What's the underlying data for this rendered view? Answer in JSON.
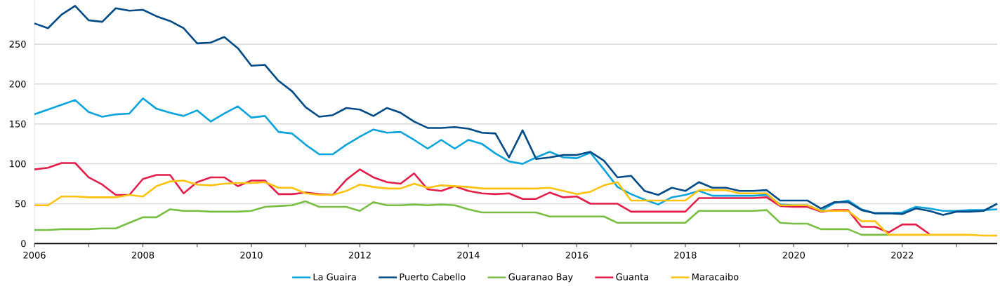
{
  "chart_data": {
    "type": "line",
    "x": [
      2006,
      2006.25,
      2006.5,
      2006.75,
      2007,
      2007.25,
      2007.5,
      2007.75,
      2008,
      2008.25,
      2008.5,
      2008.75,
      2009,
      2009.25,
      2009.5,
      2009.75,
      2010,
      2010.25,
      2010.5,
      2010.75,
      2011,
      2011.25,
      2011.5,
      2011.75,
      2012,
      2012.25,
      2012.5,
      2012.75,
      2013,
      2013.25,
      2013.5,
      2013.75,
      2014,
      2014.25,
      2014.5,
      2014.75,
      2015,
      2015.25,
      2015.5,
      2015.75,
      2016,
      2016.25,
      2016.5,
      2016.75,
      2017,
      2017.25,
      2017.5,
      2017.75,
      2018,
      2018.25,
      2018.5,
      2018.75,
      2019,
      2019.25,
      2019.5,
      2019.75,
      2020,
      2020.25,
      2020.5,
      2020.75,
      2021,
      2021.25,
      2021.5,
      2021.75,
      2022,
      2022.25,
      2022.5,
      2022.75,
      2023,
      2023.25,
      2023.5,
      2023.75
    ],
    "series": [
      {
        "name": "La Guaira",
        "color": "#0ba3dc",
        "values": [
          162,
          168,
          174,
          180,
          165,
          159,
          162,
          163,
          182,
          169,
          164,
          160,
          167,
          153,
          163,
          172,
          158,
          160,
          140,
          138,
          124,
          112,
          112,
          124,
          134,
          143,
          139,
          140,
          130,
          119,
          130,
          119,
          130,
          125,
          113,
          103,
          100,
          108,
          115,
          108,
          107,
          114,
          93,
          71,
          62,
          55,
          49,
          58,
          61,
          66,
          60,
          60,
          60,
          60,
          61,
          49,
          48,
          48,
          41,
          51,
          54,
          43,
          38,
          38,
          39,
          46,
          44,
          41,
          41,
          42,
          42,
          43
        ]
      },
      {
        "name": "Puerto Cabello",
        "color": "#004b87",
        "values": [
          276,
          270,
          287,
          298,
          280,
          278,
          295,
          292,
          293,
          285,
          279,
          270,
          251,
          252,
          259,
          245,
          223,
          224,
          204,
          191,
          171,
          159,
          161,
          170,
          168,
          160,
          170,
          164,
          153,
          145,
          145,
          146,
          144,
          139,
          138,
          108,
          142,
          106,
          108,
          111,
          111,
          115,
          104,
          83,
          85,
          66,
          61,
          70,
          66,
          77,
          70,
          70,
          66,
          66,
          67,
          54,
          54,
          54,
          44,
          52,
          52,
          42,
          38,
          38,
          37,
          44,
          41,
          36,
          40,
          40,
          41,
          50
        ]
      },
      {
        "name": "Guaranao Bay",
        "color": "#78be43",
        "values": [
          17,
          17,
          18,
          18,
          18,
          19,
          19,
          26,
          33,
          33,
          43,
          41,
          41,
          40,
          40,
          40,
          41,
          46,
          47,
          48,
          53,
          46,
          46,
          46,
          41,
          52,
          48,
          48,
          49,
          48,
          49,
          48,
          43,
          39,
          39,
          39,
          39,
          39,
          34,
          34,
          34,
          34,
          34,
          26,
          26,
          26,
          26,
          26,
          26,
          41,
          41,
          41,
          41,
          41,
          42,
          26,
          25,
          25,
          18,
          18,
          18,
          11,
          11,
          11,
          null,
          null,
          null,
          null,
          null,
          null,
          null,
          null
        ]
      },
      {
        "name": "Guanta",
        "color": "#e31e4b",
        "values": [
          93,
          95,
          101,
          101,
          83,
          74,
          61,
          61,
          81,
          86,
          86,
          63,
          77,
          83,
          83,
          72,
          79,
          79,
          62,
          62,
          64,
          62,
          61,
          80,
          93,
          83,
          77,
          75,
          88,
          68,
          66,
          72,
          66,
          63,
          62,
          63,
          56,
          56,
          64,
          58,
          59,
          50,
          50,
          50,
          40,
          40,
          40,
          40,
          40,
          57,
          57,
          57,
          57,
          57,
          58,
          47,
          46,
          46,
          40,
          42,
          42,
          21,
          21,
          14,
          24,
          24,
          12,
          null,
          null,
          null,
          null,
          null
        ]
      },
      {
        "name": "Maracaibo",
        "color": "#ffc20e",
        "values": [
          48,
          48,
          59,
          59,
          58,
          58,
          58,
          61,
          59,
          72,
          78,
          79,
          74,
          73,
          75,
          76,
          76,
          77,
          70,
          70,
          63,
          61,
          61,
          66,
          74,
          71,
          69,
          69,
          75,
          70,
          73,
          72,
          71,
          69,
          69,
          69,
          69,
          69,
          70,
          66,
          62,
          65,
          73,
          77,
          54,
          54,
          54,
          54,
          54,
          67,
          67,
          67,
          63,
          63,
          63,
          48,
          48,
          48,
          41,
          41,
          41,
          28,
          28,
          11,
          11,
          11,
          11,
          11,
          11,
          11,
          10,
          10
        ]
      }
    ],
    "xlim": [
      2006,
      2023.75
    ],
    "xticks": [
      2006,
      {
        "value": 2007,
        "label": null
      },
      2008,
      {
        "value": 2009,
        "label": null
      },
      2010,
      {
        "value": 2011,
        "label": null
      },
      2012,
      {
        "value": 2013,
        "label": null
      },
      2014,
      {
        "value": 2015,
        "label": null
      },
      2016,
      {
        "value": 2017,
        "label": null
      },
      2018,
      {
        "value": 2019,
        "label": null
      },
      2020,
      {
        "value": 2021,
        "label": null
      },
      2022,
      {
        "value": 2023,
        "label": null
      }
    ],
    "ylim": [
      0,
      305
    ],
    "yticks": [
      0,
      50,
      100,
      150,
      200,
      250
    ],
    "grid": "y",
    "legend": "bottom",
    "marker": "none",
    "line_style": "solid"
  }
}
